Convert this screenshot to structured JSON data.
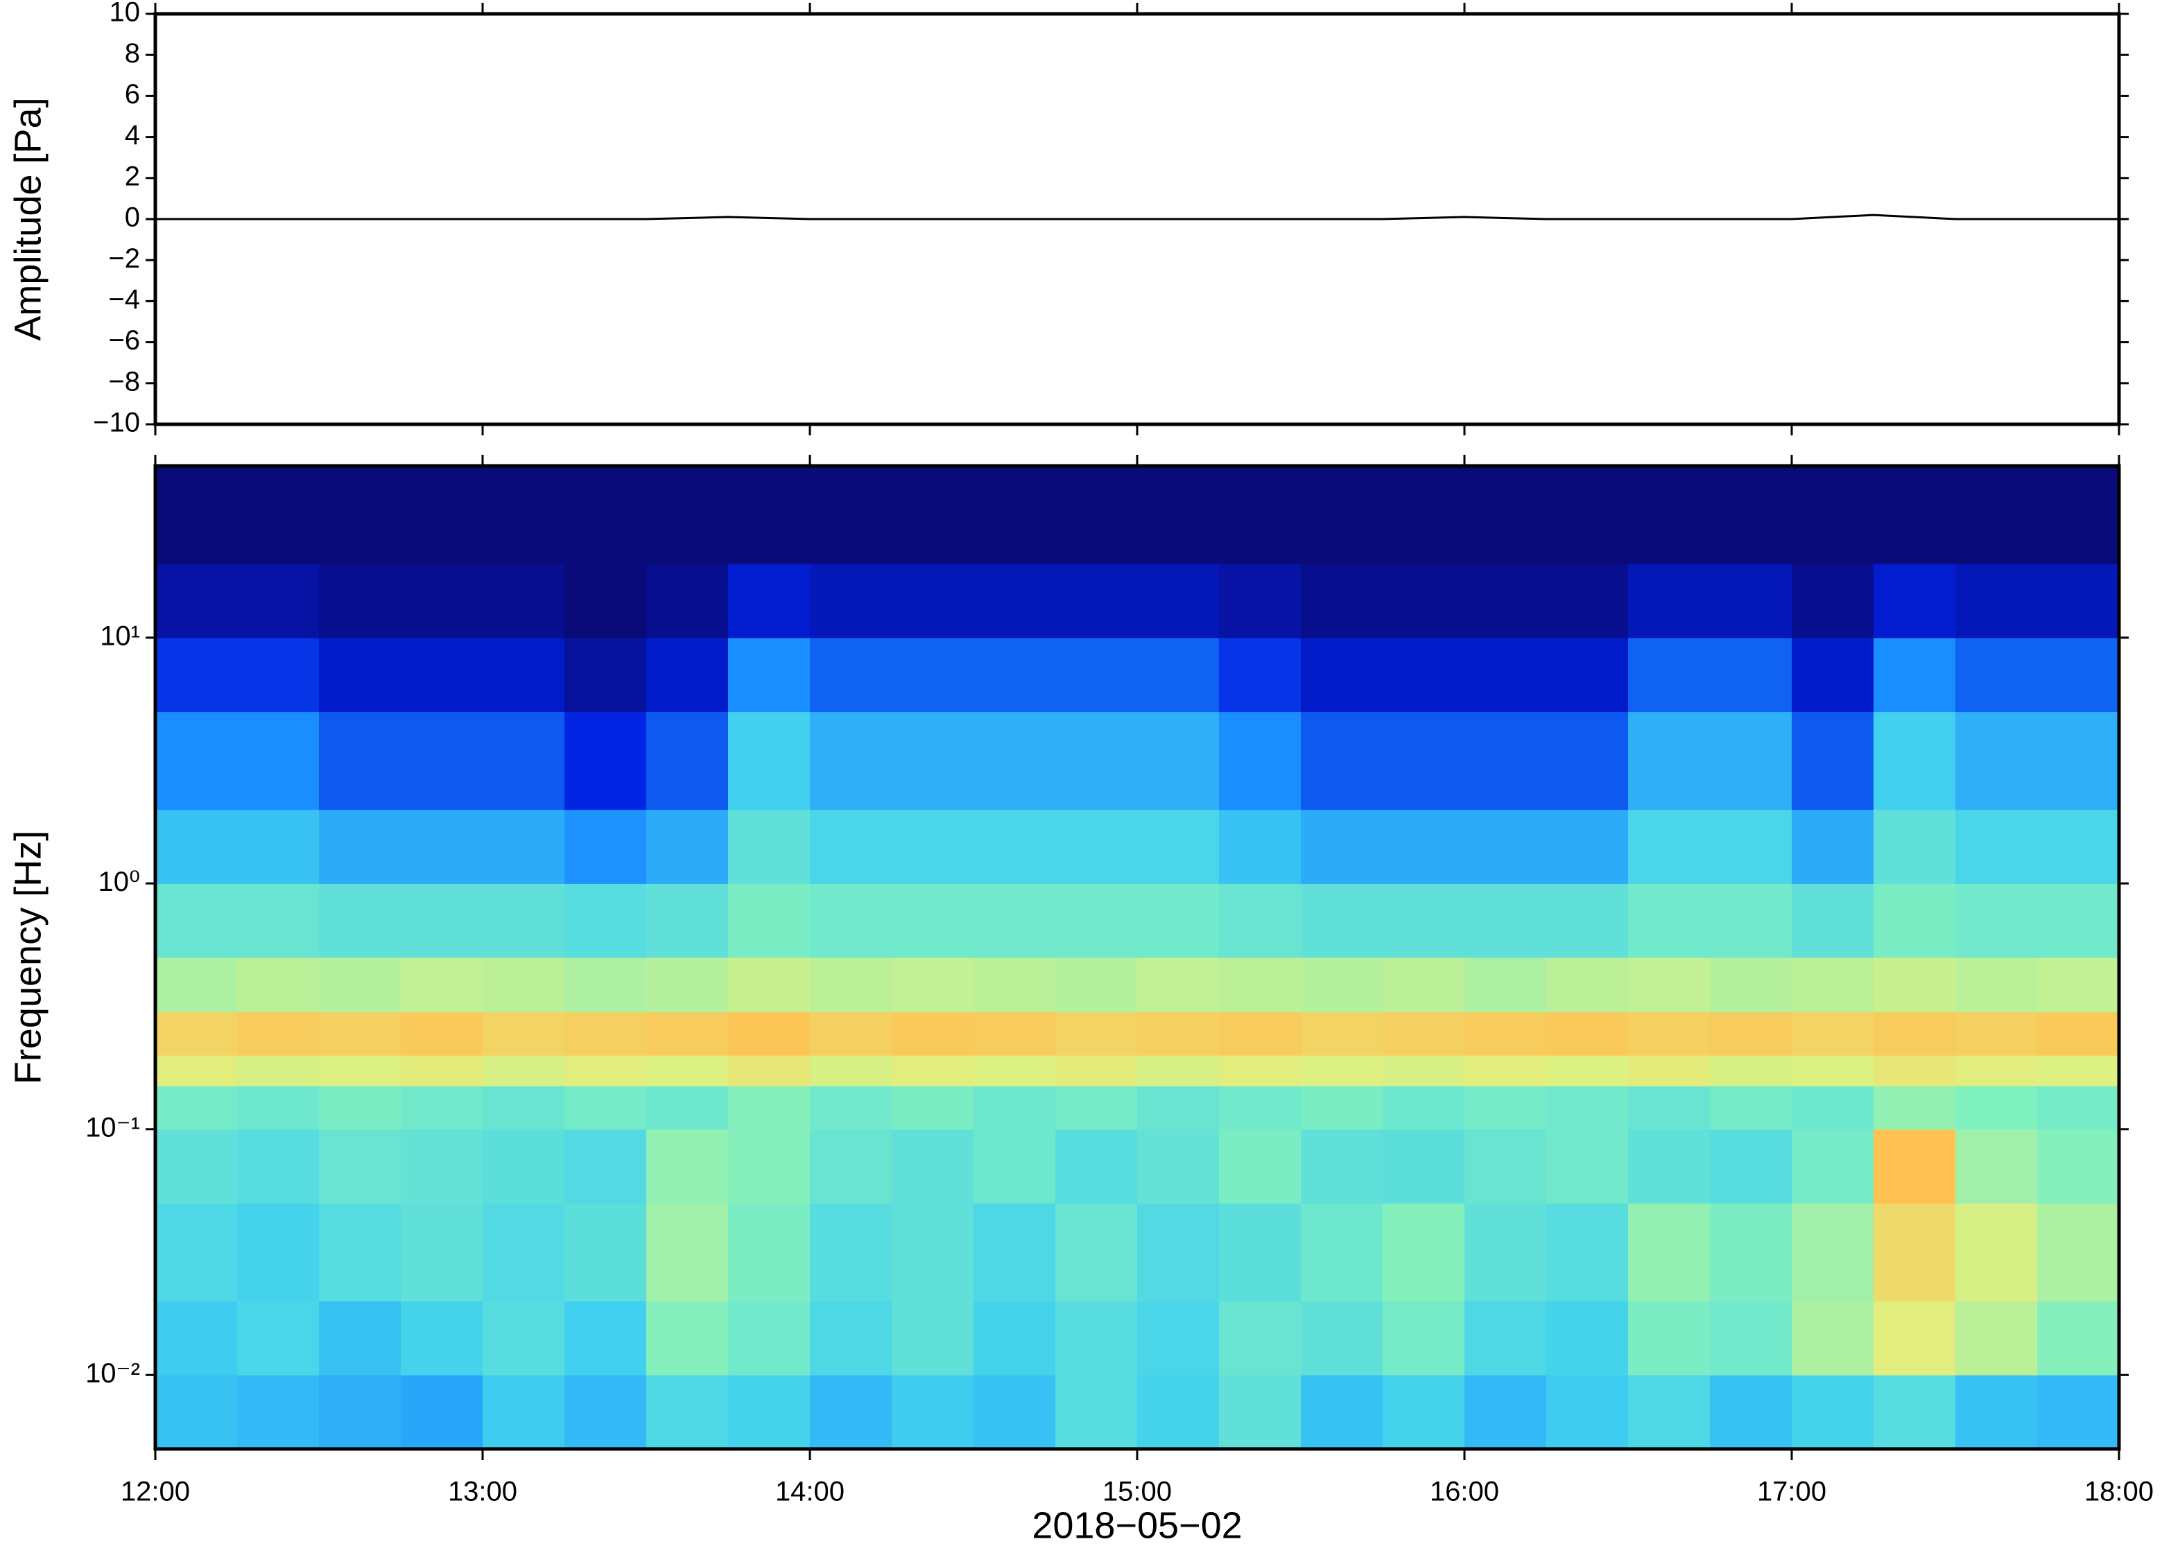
{
  "chart_data": [
    {
      "type": "line",
      "ylabel": "Amplitude [Pa]",
      "color": "#000000",
      "x": [
        12,
        12.25,
        12.5,
        12.75,
        13,
        13.25,
        13.5,
        13.75,
        14,
        14.25,
        14.5,
        14.75,
        15,
        15.25,
        15.5,
        15.75,
        16,
        16.25,
        16.5,
        16.75,
        17,
        17.25,
        17.5,
        17.75,
        18
      ],
      "values": [
        0,
        0,
        0,
        0,
        0,
        0,
        0,
        0.1,
        0,
        0,
        0,
        0,
        0,
        0,
        0,
        0,
        0.1,
        0,
        0,
        0,
        0,
        0.2,
        0,
        0,
        0
      ],
      "ylim": [
        -10,
        10
      ],
      "yticks": [
        {
          "value": -10,
          "label": "−10"
        },
        {
          "value": -8,
          "label": "−8"
        },
        {
          "value": -6,
          "label": "−6"
        },
        {
          "value": -4,
          "label": "−4"
        },
        {
          "value": -2,
          "label": "−2"
        },
        0,
        2,
        4,
        6,
        8,
        10
      ]
    },
    {
      "type": "heatmap",
      "ylabel": "Frequency [Hz]",
      "xlabel": "2018−05−02",
      "log_y": true,
      "xlim": [
        12,
        18
      ],
      "ylim": [
        0.005,
        50
      ],
      "xticks": [
        {
          "value": 12,
          "label": "12:00"
        },
        {
          "value": 13,
          "label": "13:00"
        },
        {
          "value": 14,
          "label": "14:00"
        },
        {
          "value": 15,
          "label": "15:00"
        },
        {
          "value": 16,
          "label": "16:00"
        },
        {
          "value": 17,
          "label": "17:00"
        },
        {
          "value": 18,
          "label": "18:00"
        }
      ],
      "yticks": [
        {
          "value": 0.01,
          "label": "10⁻²"
        },
        {
          "value": 0.1,
          "label": "10⁻¹"
        },
        {
          "value": 1,
          "label": "10⁰"
        },
        {
          "value": 10,
          "label": "10¹"
        }
      ],
      "colormap": [
        "#0a0a78",
        "#0020e0",
        "#1a8cff",
        "#40d0f0",
        "#80f0c0",
        "#e0f080",
        "#ffc050",
        "#ff6020"
      ],
      "zlim": [
        0,
        100
      ],
      "xbins": [
        12,
        12.25,
        12.5,
        12.75,
        13,
        13.25,
        13.5,
        13.75,
        14,
        14.25,
        14.5,
        14.75,
        15,
        15.25,
        15.5,
        15.75,
        16,
        16.25,
        16.5,
        16.75,
        17,
        17.25,
        17.5,
        17.75,
        18
      ],
      "ybins": [
        0.005,
        0.01,
        0.02,
        0.05,
        0.1,
        0.15,
        0.2,
        0.3,
        0.5,
        1,
        2,
        5,
        10,
        20,
        50
      ],
      "z": [
        [
          40,
          38,
          36,
          34,
          42,
          38,
          46,
          44,
          38,
          42,
          40,
          48,
          44,
          50,
          40,
          44,
          38,
          42,
          46,
          40,
          44,
          48,
          40,
          38
        ],
        [
          42,
          45,
          40,
          44,
          48,
          43,
          58,
          54,
          46,
          50,
          44,
          48,
          45,
          52,
          50,
          55,
          46,
          44,
          56,
          54,
          64,
          72,
          66,
          58
        ],
        [
          46,
          44,
          48,
          50,
          47,
          49,
          62,
          56,
          48,
          50,
          46,
          52,
          47,
          49,
          53,
          58,
          50,
          48,
          60,
          56,
          62,
          78,
          70,
          64
        ],
        [
          50,
          48,
          52,
          51,
          49,
          47,
          60,
          58,
          52,
          50,
          53,
          48,
          51,
          56,
          50,
          49,
          52,
          54,
          50,
          48,
          55,
          85,
          62,
          58
        ],
        [
          55,
          53,
          56,
          54,
          52,
          55,
          53,
          58,
          54,
          56,
          53,
          55,
          52,
          54,
          56,
          53,
          55,
          54,
          52,
          55,
          53,
          60,
          57,
          55
        ],
        [
          72,
          70,
          71,
          73,
          70,
          72,
          71,
          74,
          70,
          72,
          71,
          73,
          70,
          72,
          71,
          70,
          72,
          71,
          73,
          70,
          71,
          74,
          72,
          71
        ],
        [
          80,
          82,
          81,
          83,
          80,
          81,
          82,
          84,
          81,
          83,
          82,
          80,
          81,
          82,
          80,
          81,
          82,
          83,
          81,
          82,
          80,
          82,
          81,
          83
        ],
        [
          64,
          66,
          65,
          67,
          66,
          64,
          65,
          68,
          66,
          67,
          66,
          65,
          67,
          66,
          65,
          66,
          64,
          66,
          67,
          65,
          66,
          68,
          66,
          67
        ],
        [
          52,
          52,
          50,
          50,
          50,
          48,
          50,
          56,
          54,
          54,
          54,
          54,
          54,
          52,
          50,
          50,
          50,
          50,
          54,
          54,
          50,
          56,
          54,
          54
        ],
        [
          40,
          40,
          35,
          35,
          35,
          30,
          35,
          50,
          45,
          45,
          45,
          45,
          45,
          40,
          35,
          35,
          35,
          35,
          45,
          45,
          35,
          50,
          45,
          45
        ],
        [
          29,
          29,
          22,
          22,
          22,
          15,
          22,
          43,
          36,
          36,
          36,
          36,
          36,
          29,
          22,
          22,
          22,
          22,
          36,
          36,
          22,
          43,
          36,
          36
        ],
        [
          17,
          17,
          11,
          11,
          11,
          5,
          11,
          29,
          23,
          23,
          23,
          23,
          23,
          17,
          11,
          11,
          11,
          11,
          23,
          23,
          11,
          29,
          23,
          23
        ],
        [
          6,
          6,
          3,
          3,
          3,
          0,
          3,
          12,
          9,
          9,
          9,
          9,
          9,
          6,
          3,
          3,
          3,
          3,
          9,
          9,
          3,
          12,
          9,
          9
        ],
        [
          0,
          0,
          0,
          0,
          0,
          0,
          0,
          0,
          0,
          0,
          0,
          0,
          0,
          0,
          0,
          0,
          0,
          0,
          0,
          0,
          0,
          0,
          0,
          0
        ]
      ]
    }
  ]
}
